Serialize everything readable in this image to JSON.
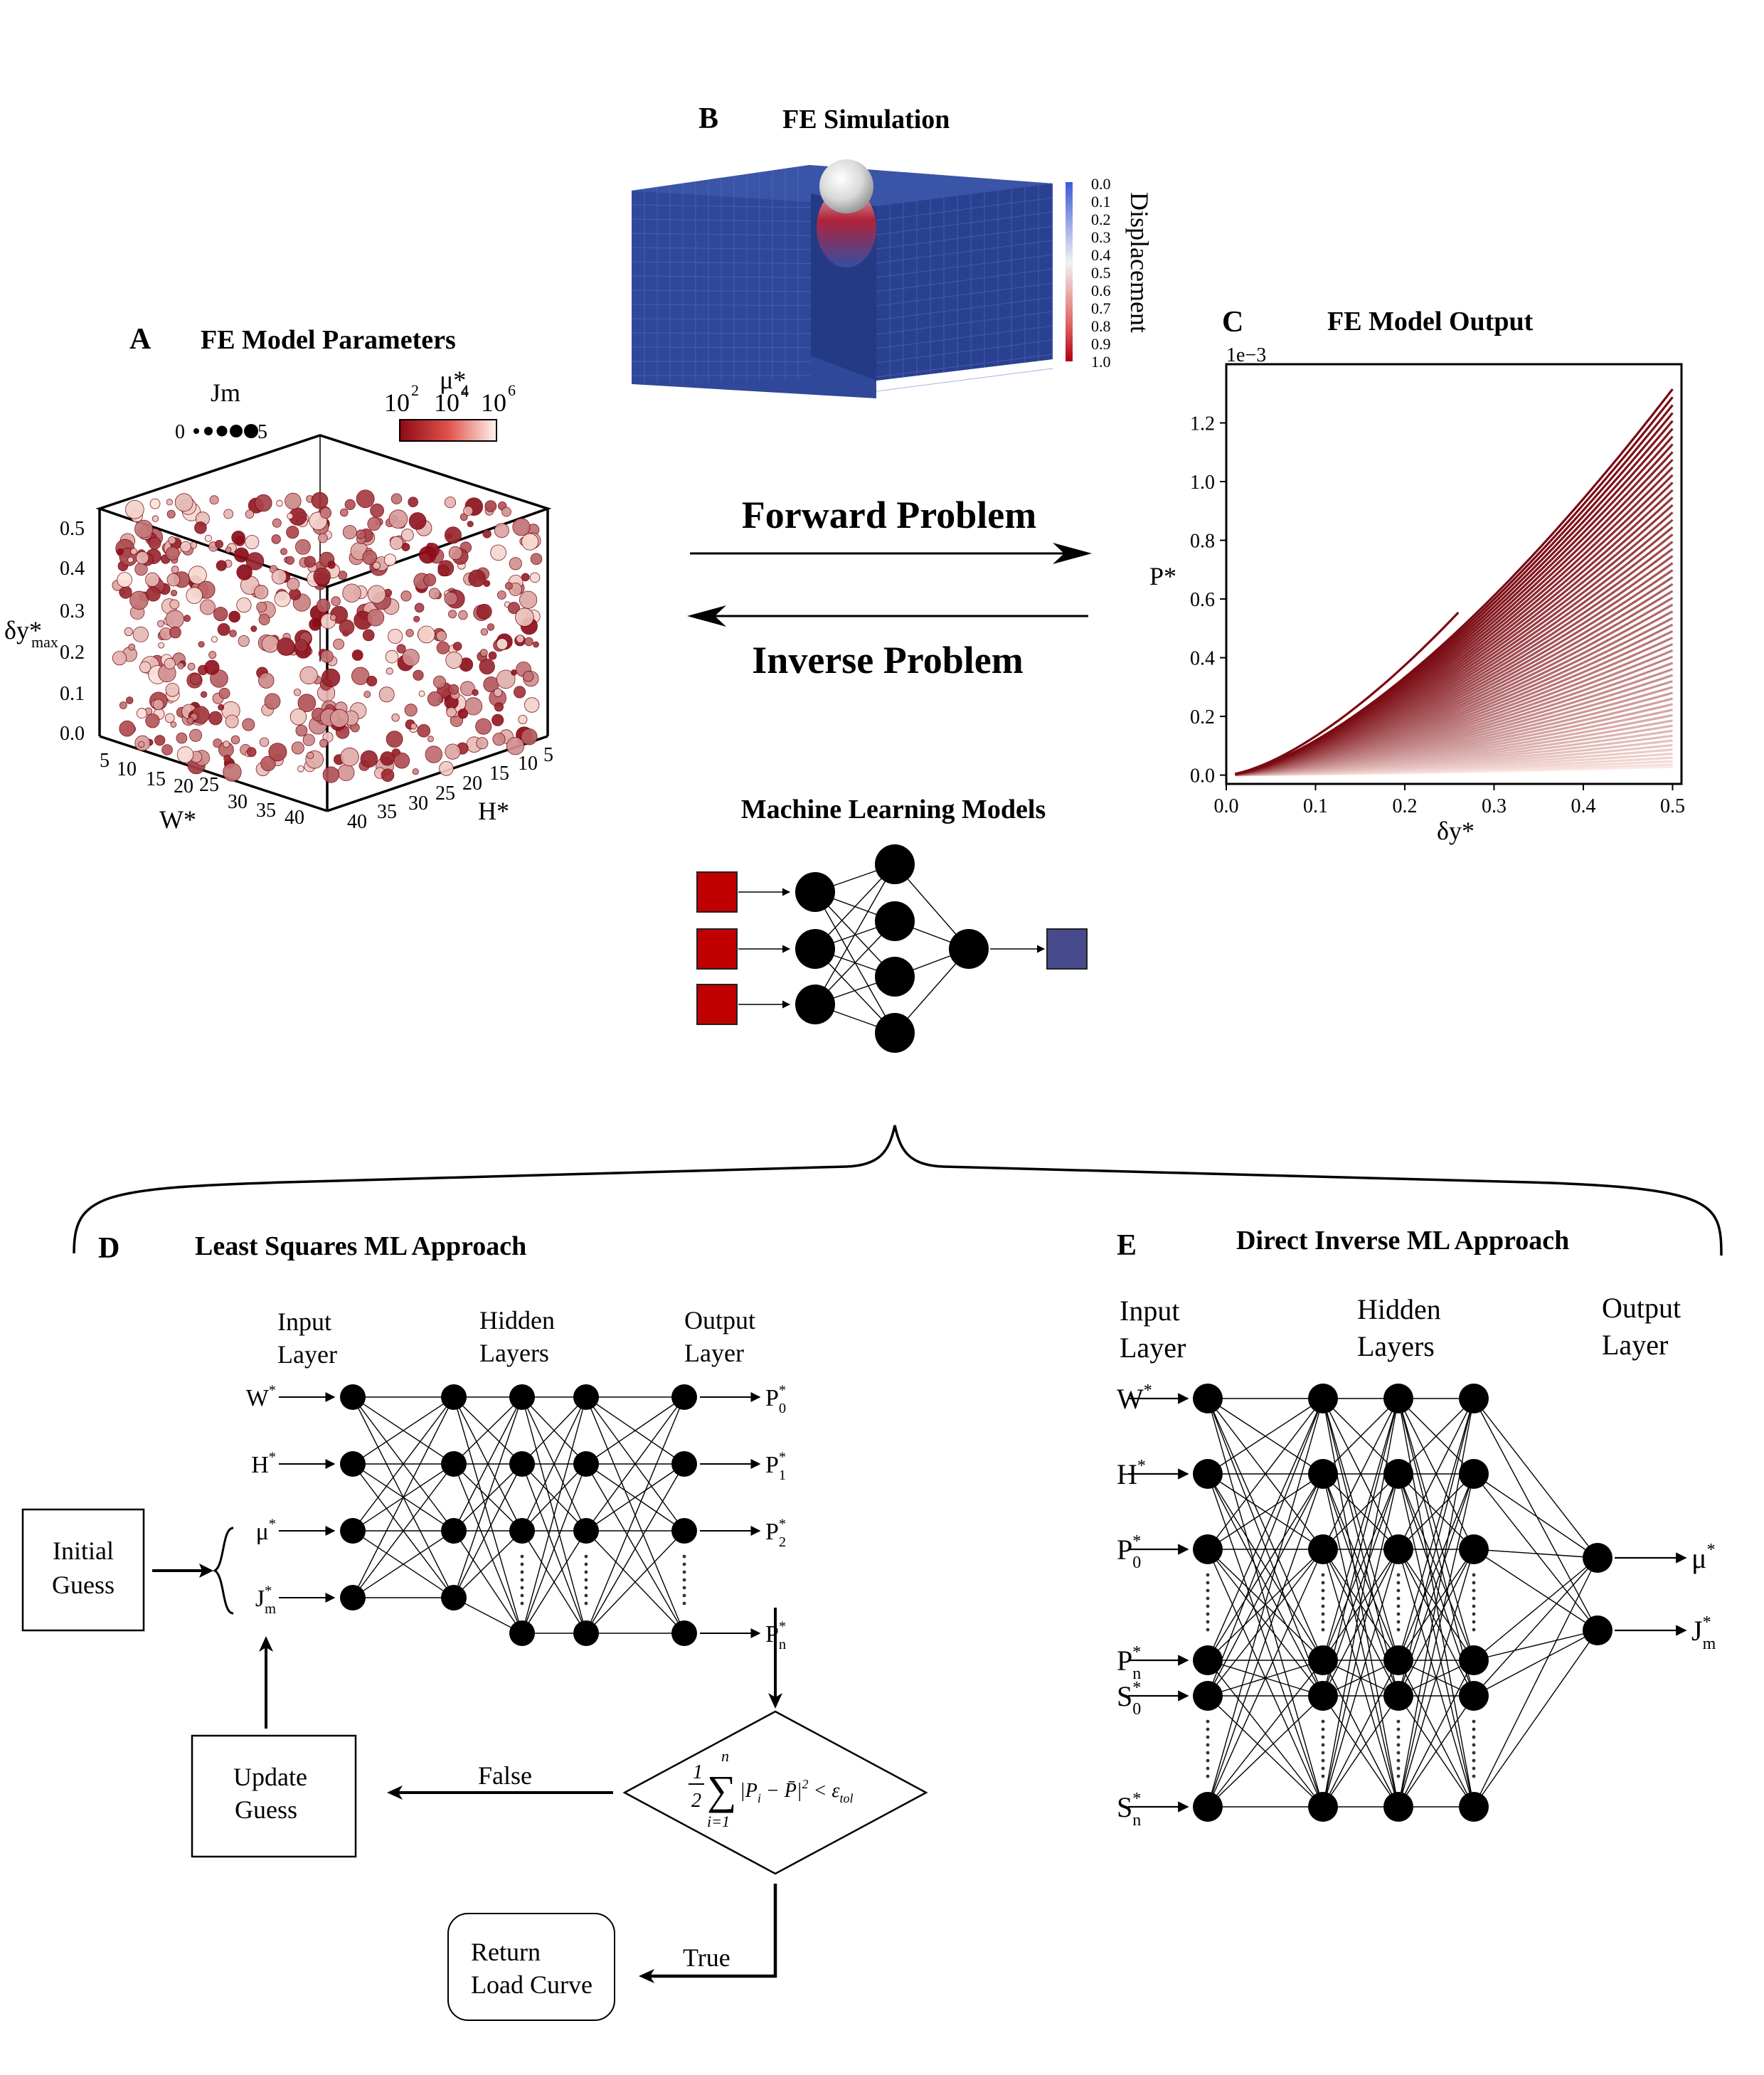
{
  "panelA": {
    "letter": "A",
    "title": "FE Model Parameters",
    "size_legend_title": "Jm",
    "size_legend_min": "0",
    "size_legend_max": "5",
    "colorbar_title": "μ*",
    "colorbar_title_sub": "4",
    "colorbar_ticks": [
      "10",
      "10",
      "10"
    ],
    "colorbar_exps": [
      "2",
      "4",
      "6"
    ],
    "z_label": "δy*",
    "z_label_sub": "max",
    "z_ticks": [
      "0.5",
      "0.4",
      "0.3",
      "0.2",
      "0.1",
      "0.0"
    ],
    "w_label": "W*",
    "w_ticks": [
      "5",
      "10",
      "15",
      "20",
      "25",
      "30",
      "35",
      "40"
    ],
    "h_label": "H*",
    "h_ticks": [
      "40",
      "35",
      "30",
      "25",
      "20",
      "15",
      "10",
      "5"
    ],
    "color_low": "#8b0a16",
    "color_high": "#fde6dd"
  },
  "panelB": {
    "letter": "B",
    "title": "FE Simulation",
    "colorbar_label": "Displacement",
    "colorbar_ticks": [
      "0.0",
      "0.1",
      "0.2",
      "0.3",
      "0.4",
      "0.5",
      "0.6",
      "0.7",
      "0.8",
      "0.9",
      "1.0"
    ],
    "mesh_color": "#2f4899"
  },
  "arrows": {
    "forward": "Forward Problem",
    "inverse": "Inverse Problem"
  },
  "panelC": {
    "letter": "C",
    "title": "FE Model Output",
    "scale_note": "1e−3"
  },
  "chart_data": {
    "type": "line",
    "xlabel": "δy*",
    "ylabel": "P*",
    "xlim": [
      0,
      0.51
    ],
    "ylim": [
      -0.03,
      1.4
    ],
    "x_ticks": [
      "0.0",
      "0.1",
      "0.2",
      "0.3",
      "0.4",
      "0.5"
    ],
    "y_ticks": [
      "0.0",
      "0.2",
      "0.4",
      "0.6",
      "0.8",
      "1.0",
      "1.2"
    ],
    "curve_model": "P = a * x^1.5",
    "short_curve": {
      "a": 4.18,
      "x_end": 0.26
    },
    "curve_a_range": [
      0.08,
      3.72
    ],
    "x_start": 0.01,
    "x_end": 0.5,
    "grid": false,
    "color_dark": "#7a0a12",
    "color_light": "#fce9e4"
  },
  "ml": {
    "title": "Machine Learning Models",
    "input_color": "#c00000",
    "output_color": "#474a8c"
  },
  "panelD": {
    "letter": "D",
    "title": "Least Squares ML Approach",
    "input_layer": [
      "Input",
      "Layer"
    ],
    "hidden_layers": [
      "Hidden",
      "Layers"
    ],
    "output_layer": [
      "Output",
      "Layer"
    ],
    "inputs": [
      {
        "base": "W",
        "sup": "*",
        "sub": ""
      },
      {
        "base": "H",
        "sup": "*",
        "sub": ""
      },
      {
        "base": "μ",
        "sup": "*",
        "sub": ""
      },
      {
        "base": "J",
        "sup": "*",
        "sub": "m"
      }
    ],
    "outputs": [
      {
        "base": "P",
        "sup": "*",
        "sub": "0"
      },
      {
        "base": "P",
        "sup": "*",
        "sub": "1"
      },
      {
        "base": "P",
        "sup": "*",
        "sub": "2"
      },
      {
        "base": "P",
        "sup": "*",
        "sub": "n"
      }
    ],
    "initial_guess": [
      "Initial",
      "Guess"
    ],
    "update_guess": [
      "Update",
      "Guess"
    ],
    "return_curve": [
      "Return",
      "Load Curve"
    ],
    "false_label": "False",
    "true_label": "True",
    "condition": {
      "frac_num": "1",
      "frac_den": "2",
      "sum_top": "n",
      "sum_bottom": "i=1",
      "body": "|P",
      "body_sub": "i",
      "body_mid": " − P̄|",
      "body_sup": "2",
      "lt": " < ε",
      "eps_sub": "tol"
    }
  },
  "panelE": {
    "letter": "E",
    "title": "Direct Inverse ML Approach",
    "input_layer": [
      "Input",
      "Layer"
    ],
    "hidden_layers": [
      "Hidden",
      "Layers"
    ],
    "output_layer": [
      "Output",
      "Layer"
    ],
    "inputs": [
      {
        "base": "W",
        "sup": "*",
        "sub": ""
      },
      {
        "base": "H",
        "sup": "*",
        "sub": ""
      },
      {
        "base": "P",
        "sup": "*",
        "sub": "0"
      },
      {
        "base": "P",
        "sup": "*",
        "sub": "n"
      },
      {
        "base": "S",
        "sup": "*",
        "sub": "0"
      },
      {
        "base": "S",
        "sup": "*",
        "sub": "n"
      }
    ],
    "outputs": [
      {
        "base": "μ",
        "sup": "*",
        "sub": ""
      },
      {
        "base": "J",
        "sup": "*",
        "sub": "m"
      }
    ]
  }
}
